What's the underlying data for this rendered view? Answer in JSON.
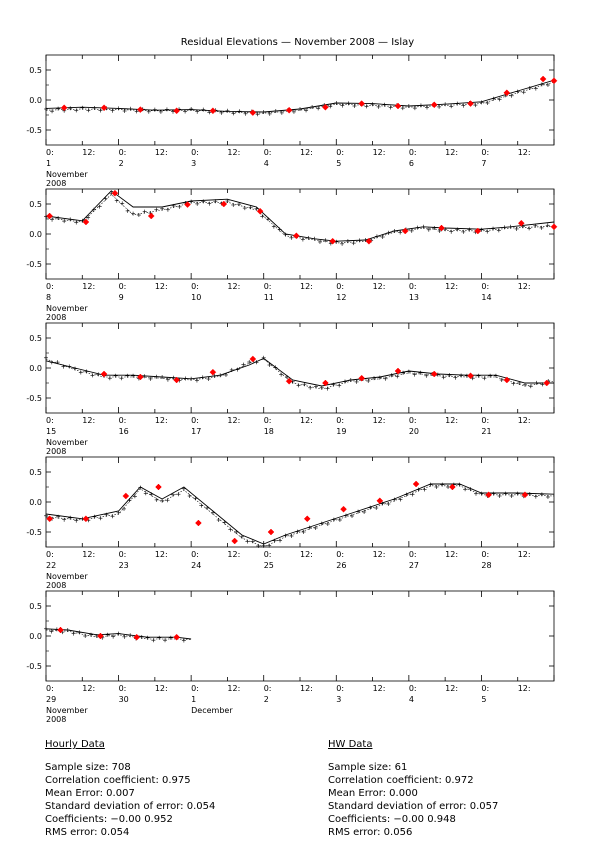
{
  "title": "Residual Elevations — November 2008 — Islay",
  "chart_data": [
    {
      "type": "line",
      "xlabel_lines": [
        "November",
        "2008"
      ],
      "day_labels": [
        "1",
        "2",
        "3",
        "4",
        "5",
        "6",
        "7"
      ],
      "day_start": 1,
      "day_end": 8,
      "ylim": [
        -0.75,
        0.75
      ],
      "yticks": [
        "0.5",
        "0.0",
        "-0.5"
      ],
      "series": [
        {
          "kind": "model-line",
          "points": [
            [
              1.0,
              -0.14
            ],
            [
              1.5,
              -0.12
            ],
            [
              2.0,
              -0.14
            ],
            [
              2.5,
              -0.17
            ],
            [
              3.0,
              -0.16
            ],
            [
              3.5,
              -0.19
            ],
            [
              4.0,
              -0.2
            ],
            [
              4.5,
              -0.15
            ],
            [
              5.0,
              -0.05
            ],
            [
              5.5,
              -0.06
            ],
            [
              6.0,
              -0.1
            ],
            [
              6.5,
              -0.07
            ],
            [
              7.0,
              -0.03
            ],
            [
              7.5,
              0.15
            ],
            [
              8.0,
              0.33
            ]
          ]
        },
        {
          "kind": "hourly-obs",
          "points": [
            [
              1.0,
              -0.17
            ],
            [
              1.5,
              -0.15
            ],
            [
              2.0,
              -0.16
            ],
            [
              2.5,
              -0.18
            ],
            [
              3.0,
              -0.17
            ],
            [
              3.5,
              -0.2
            ],
            [
              4.0,
              -0.22
            ],
            [
              4.5,
              -0.17
            ],
            [
              5.0,
              -0.07
            ],
            [
              5.5,
              -0.09
            ],
            [
              6.0,
              -0.12
            ],
            [
              6.5,
              -0.09
            ],
            [
              7.0,
              -0.06
            ],
            [
              7.5,
              0.12
            ],
            [
              8.0,
              0.3
            ]
          ]
        },
        {
          "kind": "hw-obs",
          "points": [
            [
              1.25,
              -0.13
            ],
            [
              1.8,
              -0.13
            ],
            [
              2.3,
              -0.16
            ],
            [
              2.8,
              -0.18
            ],
            [
              3.3,
              -0.18
            ],
            [
              3.85,
              -0.21
            ],
            [
              4.35,
              -0.17
            ],
            [
              4.85,
              -0.12
            ],
            [
              5.35,
              -0.06
            ],
            [
              5.85,
              -0.1
            ],
            [
              6.35,
              -0.08
            ],
            [
              6.85,
              -0.06
            ],
            [
              7.35,
              0.12
            ],
            [
              7.85,
              0.35
            ],
            [
              8.0,
              0.32
            ]
          ]
        }
      ]
    },
    {
      "type": "line",
      "xlabel_lines": [
        "November",
        "2008"
      ],
      "day_labels": [
        "8",
        "9",
        "10",
        "11",
        "12",
        "13",
        "14"
      ],
      "day_start": 8,
      "day_end": 15,
      "ylim": [
        -0.75,
        0.75
      ],
      "yticks": [
        "0.5",
        "0.0",
        "-0.5"
      ],
      "series": [
        {
          "kind": "model-line",
          "points": [
            [
              8.0,
              0.3
            ],
            [
              8.5,
              0.22
            ],
            [
              8.9,
              0.72
            ],
            [
              9.2,
              0.45
            ],
            [
              9.6,
              0.45
            ],
            [
              10.0,
              0.55
            ],
            [
              10.5,
              0.58
            ],
            [
              10.9,
              0.45
            ],
            [
              11.3,
              0.0
            ],
            [
              11.7,
              -0.08
            ],
            [
              12.0,
              -0.12
            ],
            [
              12.4,
              -0.1
            ],
            [
              12.8,
              0.05
            ],
            [
              13.2,
              0.12
            ],
            [
              13.5,
              0.1
            ],
            [
              14.0,
              0.08
            ],
            [
              14.4,
              0.12
            ],
            [
              15.0,
              0.2
            ]
          ]
        },
        {
          "kind": "hourly-obs",
          "points": [
            [
              8.0,
              0.27
            ],
            [
              8.5,
              0.2
            ],
            [
              8.9,
              0.66
            ],
            [
              9.2,
              0.32
            ],
            [
              9.6,
              0.4
            ],
            [
              10.0,
              0.52
            ],
            [
              10.5,
              0.53
            ],
            [
              10.9,
              0.4
            ],
            [
              11.3,
              -0.03
            ],
            [
              11.7,
              -0.1
            ],
            [
              12.0,
              -0.15
            ],
            [
              12.4,
              -0.12
            ],
            [
              12.8,
              0.03
            ],
            [
              13.2,
              0.1
            ],
            [
              13.5,
              0.06
            ],
            [
              14.0,
              0.05
            ],
            [
              14.4,
              0.1
            ],
            [
              15.0,
              0.13
            ]
          ]
        },
        {
          "kind": "hw-obs",
          "points": [
            [
              8.05,
              0.3
            ],
            [
              8.55,
              0.2
            ],
            [
              8.95,
              0.68
            ],
            [
              9.45,
              0.3
            ],
            [
              9.95,
              0.49
            ],
            [
              10.45,
              0.5
            ],
            [
              10.95,
              0.38
            ],
            [
              11.45,
              -0.03
            ],
            [
              11.95,
              -0.12
            ],
            [
              12.45,
              -0.12
            ],
            [
              12.95,
              0.05
            ],
            [
              13.45,
              0.1
            ],
            [
              13.95,
              0.05
            ],
            [
              14.55,
              0.18
            ],
            [
              15.0,
              0.12
            ]
          ]
        }
      ]
    },
    {
      "type": "line",
      "xlabel_lines": [
        "November",
        "2008"
      ],
      "day_labels": [
        "15",
        "16",
        "17",
        "18",
        "19",
        "20",
        "21"
      ],
      "day_start": 15,
      "day_end": 22,
      "ylim": [
        -0.75,
        0.75
      ],
      "yticks": [
        "0.5",
        "0.0",
        "-0.5"
      ],
      "series": [
        {
          "kind": "model-line",
          "points": [
            [
              15.0,
              0.12
            ],
            [
              15.4,
              0.0
            ],
            [
              15.8,
              -0.12
            ],
            [
              16.2,
              -0.12
            ],
            [
              16.6,
              -0.15
            ],
            [
              17.0,
              -0.18
            ],
            [
              17.4,
              -0.12
            ],
            [
              17.8,
              0.05
            ],
            [
              18.0,
              0.16
            ],
            [
              18.4,
              -0.2
            ],
            [
              18.8,
              -0.3
            ],
            [
              19.2,
              -0.2
            ],
            [
              19.6,
              -0.15
            ],
            [
              20.0,
              -0.05
            ],
            [
              20.4,
              -0.1
            ],
            [
              20.8,
              -0.12
            ],
            [
              21.2,
              -0.12
            ],
            [
              21.6,
              -0.25
            ],
            [
              22.0,
              -0.25
            ]
          ]
        },
        {
          "kind": "hourly-obs",
          "points": [
            [
              15.0,
              0.15
            ],
            [
              15.4,
              -0.03
            ],
            [
              15.8,
              -0.15
            ],
            [
              16.2,
              -0.15
            ],
            [
              16.6,
              -0.17
            ],
            [
              17.0,
              -0.2
            ],
            [
              17.4,
              -0.14
            ],
            [
              17.8,
              0.08
            ],
            [
              18.0,
              0.15
            ],
            [
              18.4,
              -0.25
            ],
            [
              18.8,
              -0.35
            ],
            [
              19.2,
              -0.22
            ],
            [
              19.6,
              -0.18
            ],
            [
              20.0,
              -0.08
            ],
            [
              20.4,
              -0.13
            ],
            [
              20.8,
              -0.15
            ],
            [
              21.2,
              -0.15
            ],
            [
              21.6,
              -0.3
            ],
            [
              22.0,
              -0.22
            ]
          ]
        },
        {
          "kind": "hw-obs",
          "points": [
            [
              15.8,
              -0.1
            ],
            [
              16.3,
              -0.15
            ],
            [
              16.8,
              -0.2
            ],
            [
              17.3,
              -0.07
            ],
            [
              17.85,
              0.15
            ],
            [
              18.35,
              -0.22
            ],
            [
              18.85,
              -0.25
            ],
            [
              19.35,
              -0.17
            ],
            [
              19.85,
              -0.05
            ],
            [
              20.35,
              -0.1
            ],
            [
              20.85,
              -0.13
            ],
            [
              21.35,
              -0.2
            ],
            [
              21.9,
              -0.25
            ]
          ]
        }
      ]
    },
    {
      "type": "line",
      "xlabel_lines": [
        "November",
        "2008"
      ],
      "day_labels": [
        "22",
        "23",
        "24",
        "25",
        "26",
        "27",
        "28"
      ],
      "day_start": 22,
      "day_end": 29,
      "ylim": [
        -0.75,
        0.75
      ],
      "yticks": [
        "0.5",
        "0.0",
        "-0.5"
      ],
      "series": [
        {
          "kind": "model-line",
          "points": [
            [
              22.0,
              -0.2
            ],
            [
              22.5,
              -0.28
            ],
            [
              23.0,
              -0.15
            ],
            [
              23.3,
              0.25
            ],
            [
              23.6,
              0.05
            ],
            [
              23.9,
              0.25
            ],
            [
              24.3,
              -0.15
            ],
            [
              24.7,
              -0.55
            ],
            [
              25.0,
              -0.7
            ],
            [
              25.3,
              -0.55
            ],
            [
              25.8,
              -0.35
            ],
            [
              26.3,
              -0.15
            ],
            [
              26.8,
              0.05
            ],
            [
              27.3,
              0.3
            ],
            [
              27.7,
              0.3
            ],
            [
              28.0,
              0.15
            ],
            [
              28.5,
              0.15
            ],
            [
              29.0,
              0.13
            ]
          ]
        },
        {
          "kind": "hourly-obs",
          "points": [
            [
              22.0,
              -0.25
            ],
            [
              22.5,
              -0.3
            ],
            [
              23.0,
              -0.2
            ],
            [
              23.3,
              0.22
            ],
            [
              23.6,
              0.0
            ],
            [
              23.9,
              0.2
            ],
            [
              24.3,
              -0.2
            ],
            [
              24.7,
              -0.6
            ],
            [
              25.0,
              -0.75
            ],
            [
              25.3,
              -0.58
            ],
            [
              25.8,
              -0.38
            ],
            [
              26.3,
              -0.18
            ],
            [
              26.8,
              0.02
            ],
            [
              27.3,
              0.27
            ],
            [
              27.7,
              0.27
            ],
            [
              28.0,
              0.12
            ],
            [
              28.5,
              0.12
            ],
            [
              29.0,
              0.1
            ]
          ]
        },
        {
          "kind": "hw-obs",
          "points": [
            [
              22.05,
              -0.28
            ],
            [
              22.55,
              -0.28
            ],
            [
              23.1,
              0.1
            ],
            [
              23.55,
              0.25
            ],
            [
              24.1,
              -0.35
            ],
            [
              24.6,
              -0.65
            ],
            [
              25.1,
              -0.5
            ],
            [
              25.6,
              -0.28
            ],
            [
              26.1,
              -0.12
            ],
            [
              26.6,
              0.02
            ],
            [
              27.1,
              0.3
            ],
            [
              27.6,
              0.25
            ],
            [
              28.1,
              0.12
            ],
            [
              28.6,
              0.12
            ]
          ]
        }
      ]
    },
    {
      "type": "line",
      "xlabel_lines": [
        "November",
        "2008"
      ],
      "extra_label": "December",
      "day_labels": [
        "29",
        "30",
        "1",
        "2",
        "3",
        "4",
        "5"
      ],
      "day_start": 29,
      "day_end": 36,
      "data_end": 31.0,
      "ylim": [
        -0.75,
        0.75
      ],
      "yticks": [
        "0.5",
        "0.0",
        "-0.5"
      ],
      "series": [
        {
          "kind": "model-line",
          "points": [
            [
              29.0,
              0.12
            ],
            [
              29.3,
              0.1
            ],
            [
              29.7,
              0.02
            ],
            [
              30.0,
              0.04
            ],
            [
              30.4,
              -0.02
            ],
            [
              30.8,
              -0.02
            ],
            [
              31.0,
              -0.05
            ]
          ]
        },
        {
          "kind": "hourly-obs",
          "points": [
            [
              29.0,
              0.1
            ],
            [
              29.3,
              0.08
            ],
            [
              29.7,
              -0.02
            ],
            [
              30.0,
              0.02
            ],
            [
              30.4,
              -0.05
            ],
            [
              30.8,
              -0.05
            ],
            [
              31.0,
              -0.06
            ]
          ]
        },
        {
          "kind": "hw-obs",
          "points": [
            [
              29.2,
              0.1
            ],
            [
              29.75,
              0.0
            ],
            [
              30.25,
              -0.02
            ],
            [
              30.8,
              -0.02
            ]
          ]
        }
      ]
    }
  ],
  "stats": {
    "hourly": {
      "header": "Hourly Data",
      "lines": [
        "Sample size: 708",
        "Correlation coefficient: 0.975",
        "Mean Error: 0.007",
        "Standard deviation of error: 0.054",
        "Coefficients: −0.00   0.952",
        "RMS error: 0.054"
      ]
    },
    "hw": {
      "header": "HW Data",
      "lines": [
        "Sample size: 61",
        "Correlation coefficient: 0.972",
        "Mean Error: 0.000",
        "Standard deviation of error: 0.057",
        "Coefficients: −0.00   0.948",
        "RMS error: 0.056"
      ]
    }
  },
  "hour_label_noon": "12:",
  "hour_label_midnight": "0:",
  "colors": {
    "axes": "#000000",
    "model": "#000000",
    "obs": "#000000",
    "hw": "#ff0000"
  }
}
